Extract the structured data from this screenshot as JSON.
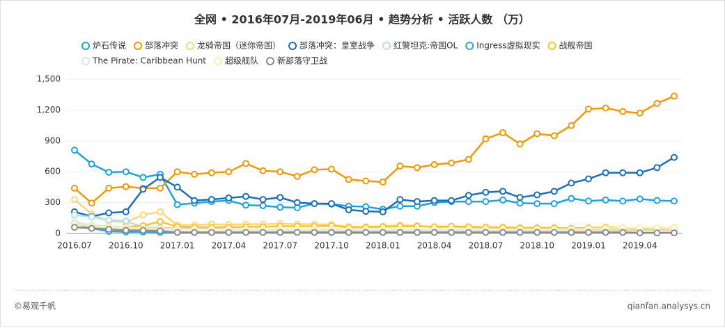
{
  "chart_data": {
    "type": "line",
    "title": "全网 • 2016年07月-2019年06月 • 趋势分析 • 活跃人数 （万）",
    "categories": [
      "2016.07",
      null,
      null,
      "2016.10",
      null,
      null,
      "2017.01",
      null,
      null,
      "2017.04",
      null,
      null,
      "2017.07",
      null,
      null,
      "2017.10",
      null,
      null,
      "2018.01",
      null,
      null,
      "2018.04",
      null,
      null,
      "2018.07",
      null,
      null,
      "2018.10",
      null,
      null,
      "2019.01",
      null,
      null,
      "2019.04",
      null,
      null
    ],
    "series": [
      {
        "name": "炉石传说",
        "color": "#1ca3de",
        "values": [
          810,
          675,
          595,
          600,
          545,
          575,
          280,
          295,
          310,
          320,
          275,
          270,
          255,
          250,
          290,
          285,
          265,
          260,
          235,
          265,
          265,
          300,
          310,
          310,
          310,
          325,
          295,
          290,
          290,
          340,
          315,
          325,
          315,
          335,
          320,
          315
        ]
      },
      {
        "name": "部落冲突",
        "color": "#f39800",
        "values": [
          440,
          295,
          440,
          455,
          440,
          440,
          600,
          575,
          590,
          600,
          680,
          610,
          600,
          555,
          620,
          625,
          525,
          510,
          500,
          655,
          640,
          670,
          685,
          720,
          920,
          980,
          870,
          970,
          950,
          1050,
          1210,
          1220,
          1185,
          1170,
          1265,
          1335
        ]
      },
      {
        "name": "龙骑帝国（迷你帝国）",
        "color": "#fbd67e",
        "values": [
          330,
          190,
          120,
          110,
          180,
          210,
          80,
          80,
          90,
          85,
          90,
          90,
          95,
          90,
          90,
          85,
          65,
          65,
          70,
          80,
          75,
          60,
          65,
          60,
          60,
          55,
          50,
          45,
          45,
          40,
          40,
          40,
          35,
          35,
          35,
          30
        ]
      },
      {
        "name": "部落冲突：皇室战争",
        "color": "#1a6fb8",
        "values": [
          210,
          165,
          200,
          210,
          430,
          545,
          450,
          320,
          330,
          345,
          360,
          330,
          350,
          300,
          290,
          290,
          230,
          215,
          210,
          330,
          310,
          320,
          320,
          370,
          400,
          410,
          350,
          375,
          410,
          490,
          530,
          590,
          590,
          590,
          640,
          740
        ]
      },
      {
        "name": "红警坦克:帝国OL",
        "color": "#b7dcf0",
        "values": [
          180,
          160,
          130,
          120,
          60,
          55,
          50,
          45,
          45,
          40,
          40,
          40,
          40,
          35,
          35,
          35,
          30,
          30,
          30,
          30,
          25,
          25,
          25,
          25,
          20,
          20,
          20,
          20,
          20,
          20,
          20,
          20,
          20,
          15,
          15,
          15
        ]
      },
      {
        "name": "Ingress虚拟现实",
        "color": "#2fa4e7",
        "values": [
          100,
          50,
          20,
          15,
          15,
          10,
          10,
          10,
          10,
          10,
          10,
          10,
          10,
          10,
          10,
          10,
          10,
          10,
          10,
          10,
          10,
          10,
          10,
          10,
          10,
          10,
          10,
          10,
          10,
          10,
          10,
          10,
          10,
          10,
          10,
          10
        ]
      },
      {
        "name": "战舰帝国",
        "color": "#f7c52b",
        "values": [
          60,
          55,
          55,
          65,
          75,
          115,
          65,
          60,
          60,
          60,
          65,
          65,
          70,
          70,
          70,
          75,
          60,
          60,
          65,
          70,
          70,
          65,
          70,
          65,
          60,
          60,
          55,
          55,
          55,
          50,
          55,
          60,
          55,
          50,
          50,
          60
        ]
      },
      {
        "name": "The Pirate: Caribbean Hunt",
        "color": "#cfe9f6",
        "values": [
          110,
          80,
          70,
          60,
          50,
          45,
          40,
          40,
          40,
          35,
          35,
          35,
          35,
          30,
          30,
          30,
          30,
          30,
          25,
          25,
          25,
          25,
          25,
          25,
          25,
          25,
          20,
          20,
          20,
          20,
          20,
          20,
          20,
          20,
          20,
          20
        ]
      },
      {
        "name": "超级舰队",
        "color": "#fdeeb0",
        "values": [
          90,
          70,
          60,
          55,
          50,
          45,
          40,
          40,
          40,
          40,
          40,
          40,
          40,
          40,
          40,
          40,
          40,
          40,
          40,
          40,
          40,
          40,
          40,
          40,
          40,
          40,
          40,
          40,
          40,
          40,
          45,
          50,
          55,
          55,
          55,
          60
        ]
      },
      {
        "name": "新部落守卫战",
        "color": "#8c8c8c",
        "values": [
          60,
          50,
          40,
          30,
          30,
          25,
          10,
          10,
          10,
          10,
          10,
          10,
          10,
          10,
          10,
          10,
          10,
          10,
          10,
          10,
          10,
          10,
          10,
          10,
          10,
          10,
          10,
          10,
          10,
          10,
          10,
          10,
          10,
          5,
          5,
          5
        ]
      }
    ],
    "ylim": [
      0,
      1500
    ],
    "yticks": [
      0,
      300,
      600,
      900,
      {
        "value": 1200,
        "label": "1,200"
      },
      {
        "value": 1500,
        "label": "1,500"
      }
    ],
    "grid": true,
    "footer_left": "©易观千帆",
    "footer_right": "qianfan.analysys.cn"
  }
}
